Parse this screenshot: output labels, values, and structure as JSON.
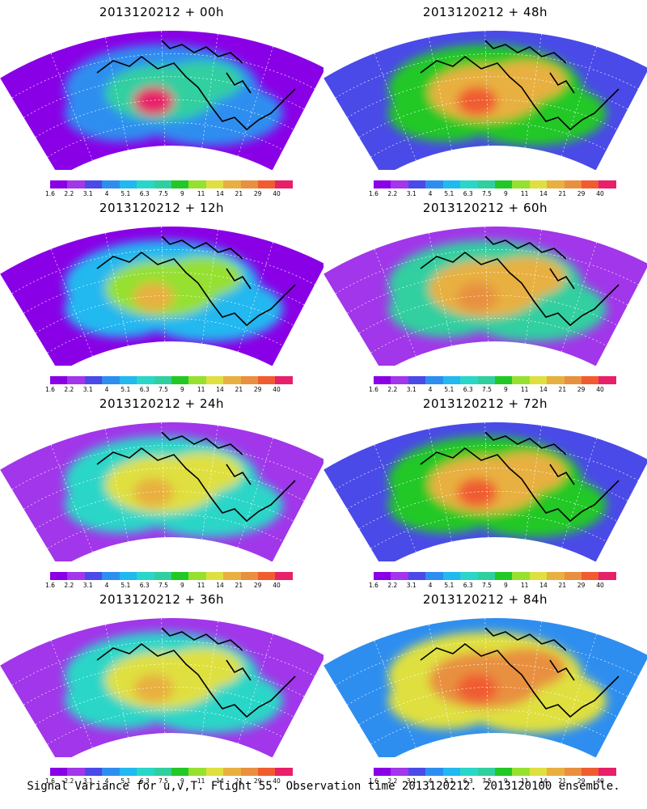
{
  "colorbar": {
    "colors": [
      "#8a00e6",
      "#a236ea",
      "#4a4ae8",
      "#2e8ef0",
      "#22b8f0",
      "#2ad6c8",
      "#30cfa0",
      "#22c825",
      "#96e030",
      "#dfe040",
      "#e8b040",
      "#e89040",
      "#f05c30",
      "#e8206a"
    ],
    "labels": [
      "1.6",
      "2.2",
      "3.1",
      "4",
      "5.1",
      "6.3",
      "7.5",
      "9",
      "11",
      "14",
      "21",
      "29",
      "40"
    ]
  },
  "panels": [
    {
      "title": "2013120212 + 00h",
      "lead": "00h"
    },
    {
      "title": "2013120212 + 48h",
      "lead": "48h"
    },
    {
      "title": "2013120212 + 12h",
      "lead": "12h"
    },
    {
      "title": "2013120212 + 60h",
      "lead": "60h"
    },
    {
      "title": "2013120212 + 24h",
      "lead": "24h"
    },
    {
      "title": "2013120212 + 72h",
      "lead": "72h"
    },
    {
      "title": "2013120212 + 36h",
      "lead": "36h"
    },
    {
      "title": "2013120212 + 84h",
      "lead": "84h"
    }
  ],
  "footer": "Signal Variance for u,v,T. Flight 55. Observation time 2013120212. 2013120100 ensemble."
}
